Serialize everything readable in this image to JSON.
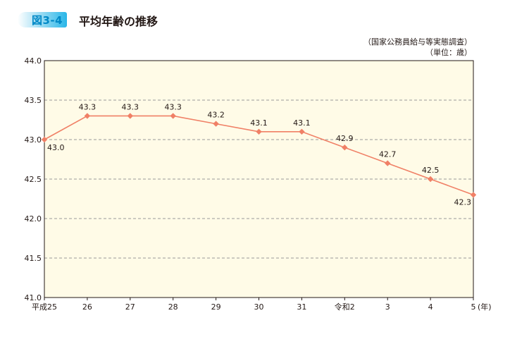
{
  "figure": {
    "tag": "図3-4",
    "title": "平均年齢の推移",
    "source": "（国家公務員給与等実態調査）",
    "unit_note": "（単位：歳）"
  },
  "colors": {
    "plot_background": "#fffbe7",
    "line": "#f08066",
    "grid": "#9a9a9a"
  },
  "chart_data": {
    "type": "line",
    "categories": [
      "平成25",
      "26",
      "27",
      "28",
      "29",
      "30",
      "31",
      "令和2",
      "3",
      "4",
      "5"
    ],
    "series": [
      {
        "values": [
          43.0,
          43.3,
          43.3,
          43.3,
          43.2,
          43.1,
          43.1,
          42.9,
          42.7,
          42.5,
          42.3
        ]
      }
    ],
    "data_labels": [
      "43.0",
      "43.3",
      "43.3",
      "43.3",
      "43.2",
      "43.1",
      "43.1",
      "42.9",
      "42.7",
      "42.5",
      "42.3"
    ],
    "y_ticks": [
      "44.0",
      "43.5",
      "43.0",
      "42.5",
      "42.0",
      "41.5",
      "41.0"
    ],
    "ylim": [
      41.0,
      44.0
    ],
    "x_unit": "(年)",
    "grid": "horizontal dashed",
    "marker": "diamond"
  }
}
